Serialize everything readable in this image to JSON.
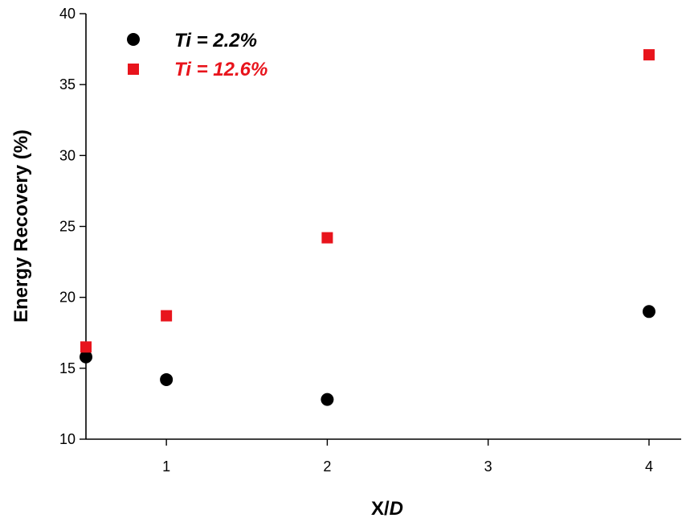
{
  "chart_data": {
    "type": "scatter",
    "title": "",
    "xlabel": "X/D",
    "xlabel_parts": [
      "X/",
      "D"
    ],
    "ylabel": "Energy Recovery (%)",
    "xlim": [
      0.5,
      4.2
    ],
    "ylim": [
      10,
      40
    ],
    "xticks": [
      1,
      2,
      3,
      4
    ],
    "yticks": [
      10,
      15,
      20,
      25,
      30,
      35,
      40
    ],
    "grid": false,
    "legend_position": "top-left",
    "series": [
      {
        "name": "Ti = 2.2%",
        "name_parts": [
          "Ti",
          " = 2.2%"
        ],
        "marker": "circle",
        "color": "#000000",
        "x": [
          0.5,
          1,
          2,
          4
        ],
        "y": [
          15.8,
          14.2,
          12.8,
          19.0
        ]
      },
      {
        "name": "Ti = 12.6%",
        "name_parts": [
          "Ti",
          " = 12.6%"
        ],
        "marker": "square",
        "color": "#e8141c",
        "x": [
          0.5,
          1,
          2,
          4
        ],
        "y": [
          16.5,
          18.7,
          24.2,
          37.1
        ]
      }
    ]
  }
}
